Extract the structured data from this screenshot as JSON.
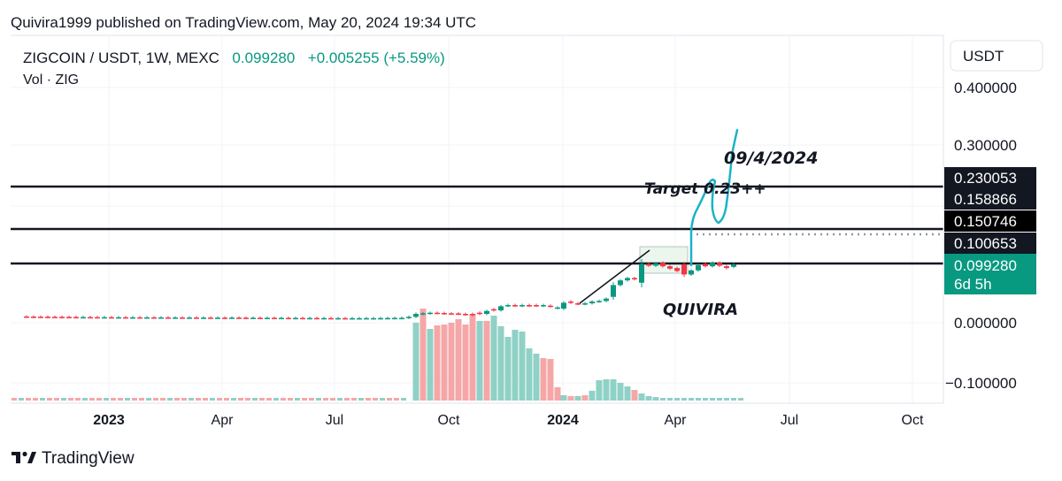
{
  "header": {
    "published": "Quivira1999 published on TradingView.com, May 20, 2024 19:34 UTC",
    "symbol": "ZIGCOIN / USDT, 1W, MEXC",
    "last_price": "0.099280",
    "change": "+0.005255 (+5.59%)",
    "volume_label": "Vol · ZIG"
  },
  "currency_button": "USDT",
  "price_axis": {
    "ticks": [
      "0.400000",
      "0.300000",
      "0.000000",
      "−0.100000"
    ],
    "tick_values": [
      0.4,
      0.3,
      0.0,
      -0.1
    ]
  },
  "price_tags": [
    {
      "text": "0.230053",
      "value": 0.230053,
      "color": "#131722"
    },
    {
      "text": "0.158866",
      "value": 0.158866,
      "color": "#131722"
    },
    {
      "text": "0.150746",
      "value": 0.150746,
      "color": "#000000"
    },
    {
      "text": "0.100653",
      "value": 0.100653,
      "color": "#131722"
    }
  ],
  "current_price_tag": {
    "price": "0.099280",
    "countdown": "6d 5h",
    "color": "#089981"
  },
  "time_axis": [
    {
      "label": "2023",
      "major": true
    },
    {
      "label": "Apr",
      "major": false
    },
    {
      "label": "Jul",
      "major": false
    },
    {
      "label": "Oct",
      "major": false
    },
    {
      "label": "2024",
      "major": true
    },
    {
      "label": "Apr",
      "major": false
    },
    {
      "label": "Jul",
      "major": false
    },
    {
      "label": "Oct",
      "major": false
    }
  ],
  "annotations": {
    "date": "09/4/2024",
    "target": "Target 0.23++",
    "author": "QUIVIRA"
  },
  "horizontal_lines": [
    0.230053,
    0.150746,
    0.09928
  ],
  "dotted_line": 0.158866,
  "brand": "TradingView",
  "colors": {
    "up": "#089981",
    "down": "#f23645",
    "vol_up": "#8fd1c6",
    "vol_down": "#f5a7a7",
    "cyan": "#1ab3c6"
  },
  "chart_data": {
    "type": "candlestick",
    "title": "ZIGCOIN / USDT, 1W, MEXC",
    "ylim": [
      -0.12,
      0.43
    ],
    "candles": [
      {
        "x": 30,
        "o": 0.0106,
        "c": 0.0104
      },
      {
        "x": 38,
        "o": 0.0104,
        "c": 0.0102
      },
      {
        "x": 46,
        "o": 0.0102,
        "c": 0.0101
      },
      {
        "x": 54,
        "o": 0.0101,
        "c": 0.01
      },
      {
        "x": 62,
        "o": 0.01,
        "c": 0.0099
      },
      {
        "x": 70,
        "o": 0.0099,
        "c": 0.0098
      },
      {
        "x": 78,
        "o": 0.0098,
        "c": 0.0097
      },
      {
        "x": 86,
        "o": 0.0097,
        "c": 0.0096
      },
      {
        "x": 94,
        "o": 0.0096,
        "c": 0.0096
      },
      {
        "x": 102,
        "o": 0.0096,
        "c": 0.0095
      },
      {
        "x": 110,
        "o": 0.0095,
        "c": 0.0094
      },
      {
        "x": 118,
        "o": 0.0094,
        "c": 0.0094
      },
      {
        "x": 126,
        "o": 0.0094,
        "c": 0.0093
      },
      {
        "x": 134,
        "o": 0.0093,
        "c": 0.0093
      },
      {
        "x": 142,
        "o": 0.0093,
        "c": 0.0092
      },
      {
        "x": 150,
        "o": 0.0092,
        "c": 0.0092
      },
      {
        "x": 158,
        "o": 0.0092,
        "c": 0.0091
      },
      {
        "x": 166,
        "o": 0.0091,
        "c": 0.0091
      },
      {
        "x": 174,
        "o": 0.0091,
        "c": 0.009
      },
      {
        "x": 182,
        "o": 0.009,
        "c": 0.009
      },
      {
        "x": 190,
        "o": 0.009,
        "c": 0.0089
      },
      {
        "x": 198,
        "o": 0.0089,
        "c": 0.0089
      },
      {
        "x": 206,
        "o": 0.0089,
        "c": 0.0088
      },
      {
        "x": 214,
        "o": 0.0088,
        "c": 0.0088
      },
      {
        "x": 222,
        "o": 0.0088,
        "c": 0.0087
      },
      {
        "x": 230,
        "o": 0.0087,
        "c": 0.0087
      },
      {
        "x": 238,
        "o": 0.0087,
        "c": 0.0086
      },
      {
        "x": 246,
        "o": 0.0086,
        "c": 0.0086
      },
      {
        "x": 254,
        "o": 0.0086,
        "c": 0.0085
      },
      {
        "x": 262,
        "o": 0.0085,
        "c": 0.0087
      },
      {
        "x": 270,
        "o": 0.0087,
        "c": 0.0085
      },
      {
        "x": 278,
        "o": 0.0085,
        "c": 0.0084
      },
      {
        "x": 286,
        "o": 0.0084,
        "c": 0.0084
      },
      {
        "x": 294,
        "o": 0.0084,
        "c": 0.0083
      },
      {
        "x": 302,
        "o": 0.0083,
        "c": 0.0083
      },
      {
        "x": 310,
        "o": 0.0083,
        "c": 0.0082
      },
      {
        "x": 318,
        "o": 0.0082,
        "c": 0.0082
      },
      {
        "x": 326,
        "o": 0.0082,
        "c": 0.0081
      },
      {
        "x": 334,
        "o": 0.0081,
        "c": 0.0081
      },
      {
        "x": 342,
        "o": 0.0081,
        "c": 0.008
      },
      {
        "x": 350,
        "o": 0.008,
        "c": 0.008
      },
      {
        "x": 358,
        "o": 0.008,
        "c": 0.0079
      },
      {
        "x": 366,
        "o": 0.0079,
        "c": 0.0079
      },
      {
        "x": 374,
        "o": 0.0079,
        "c": 0.0078
      },
      {
        "x": 382,
        "o": 0.0078,
        "c": 0.0078
      },
      {
        "x": 390,
        "o": 0.0078,
        "c": 0.0077
      },
      {
        "x": 398,
        "o": 0.0077,
        "c": 0.0077
      },
      {
        "x": 406,
        "o": 0.0077,
        "c": 0.0077
      },
      {
        "x": 414,
        "o": 0.0077,
        "c": 0.0078
      },
      {
        "x": 422,
        "o": 0.0078,
        "c": 0.0078
      },
      {
        "x": 430,
        "o": 0.0078,
        "c": 0.0079
      },
      {
        "x": 438,
        "o": 0.0079,
        "c": 0.008
      },
      {
        "x": 446,
        "o": 0.008,
        "c": 0.0081
      },
      {
        "x": 454,
        "o": 0.0081,
        "c": 0.0082
      },
      {
        "x": 462,
        "o": 0.0082,
        "c": 0.01
      },
      {
        "x": 470,
        "o": 0.01,
        "c": 0.015
      },
      {
        "x": 478,
        "o": 0.015,
        "c": 0.016
      },
      {
        "x": 486,
        "o": 0.016,
        "c": 0.017
      },
      {
        "x": 494,
        "o": 0.017,
        "c": 0.0165
      },
      {
        "x": 502,
        "o": 0.0165,
        "c": 0.016
      },
      {
        "x": 510,
        "o": 0.016,
        "c": 0.0158
      },
      {
        "x": 518,
        "o": 0.0158,
        "c": 0.015
      },
      {
        "x": 526,
        "o": 0.015,
        "c": 0.014
      },
      {
        "x": 534,
        "o": 0.015,
        "c": 0.013
      },
      {
        "x": 542,
        "o": 0.017,
        "c": 0.015
      },
      {
        "x": 550,
        "o": 0.015,
        "c": 0.02
      },
      {
        "x": 558,
        "o": 0.023,
        "c": 0.021
      },
      {
        "x": 566,
        "o": 0.021,
        "c": 0.028
      },
      {
        "x": 574,
        "o": 0.029,
        "c": 0.03
      },
      {
        "x": 582,
        "o": 0.03,
        "c": 0.029
      },
      {
        "x": 590,
        "o": 0.029,
        "c": 0.03
      },
      {
        "x": 598,
        "o": 0.03,
        "c": 0.029
      },
      {
        "x": 606,
        "o": 0.03,
        "c": 0.029
      },
      {
        "x": 614,
        "o": 0.029,
        "c": 0.03
      },
      {
        "x": 622,
        "o": 0.029,
        "c": 0.028
      },
      {
        "x": 630,
        "o": 0.025,
        "c": 0.026
      },
      {
        "x": 637,
        "o": 0.024,
        "c": 0.034
      },
      {
        "x": 645,
        "o": 0.036,
        "c": 0.034
      },
      {
        "x": 653,
        "o": 0.033,
        "c": 0.032
      },
      {
        "x": 661,
        "o": 0.032,
        "c": 0.033
      },
      {
        "x": 669,
        "o": 0.033,
        "c": 0.036
      },
      {
        "x": 677,
        "o": 0.036,
        "c": 0.037
      },
      {
        "x": 685,
        "o": 0.037,
        "c": 0.041
      },
      {
        "x": 693,
        "o": 0.044,
        "c": 0.064
      },
      {
        "x": 701,
        "o": 0.064,
        "c": 0.072
      },
      {
        "x": 709,
        "o": 0.072,
        "c": 0.076
      },
      {
        "x": 717,
        "o": 0.076,
        "c": 0.074
      },
      {
        "x": 725,
        "o": 0.068,
        "c": 0.1
      },
      {
        "x": 733,
        "o": 0.1,
        "c": 0.097
      },
      {
        "x": 741,
        "o": 0.097,
        "c": 0.101
      },
      {
        "x": 749,
        "o": 0.102,
        "c": 0.096
      },
      {
        "x": 757,
        "o": 0.096,
        "c": 0.092
      },
      {
        "x": 765,
        "o": 0.093,
        "c": 0.088
      },
      {
        "x": 773,
        "o": 0.099,
        "c": 0.082
      },
      {
        "x": 781,
        "o": 0.082,
        "c": 0.089
      },
      {
        "x": 789,
        "o": 0.089,
        "c": 0.098
      },
      {
        "x": 797,
        "o": 0.1,
        "c": 0.096
      },
      {
        "x": 805,
        "o": 0.096,
        "c": 0.102
      },
      {
        "x": 813,
        "o": 0.102,
        "c": 0.097
      },
      {
        "x": 821,
        "o": 0.096,
        "c": 0.093
      },
      {
        "x": 829,
        "o": 0.095,
        "c": 0.0992
      }
    ],
    "volume": [
      {
        "x": 470,
        "h": 88,
        "up": true
      },
      {
        "x": 478,
        "h": 104,
        "up": false
      },
      {
        "x": 486,
        "h": 81,
        "up": true
      },
      {
        "x": 494,
        "h": 85,
        "up": false
      },
      {
        "x": 502,
        "h": 86,
        "up": false
      },
      {
        "x": 510,
        "h": 88,
        "up": false
      },
      {
        "x": 518,
        "h": 92,
        "up": false
      },
      {
        "x": 526,
        "h": 86,
        "up": false
      },
      {
        "x": 534,
        "h": 98,
        "up": false
      },
      {
        "x": 542,
        "h": 90,
        "up": true
      },
      {
        "x": 550,
        "h": 90,
        "up": false
      },
      {
        "x": 558,
        "h": 96,
        "up": true
      },
      {
        "x": 566,
        "h": 84,
        "up": true
      },
      {
        "x": 574,
        "h": 72,
        "up": true
      },
      {
        "x": 582,
        "h": 80,
        "up": true
      },
      {
        "x": 590,
        "h": 78,
        "up": true
      },
      {
        "x": 598,
        "h": 59,
        "up": true
      },
      {
        "x": 606,
        "h": 53,
        "up": true
      },
      {
        "x": 614,
        "h": 48,
        "up": false
      },
      {
        "x": 622,
        "h": 47,
        "up": false
      },
      {
        "x": 630,
        "h": 15,
        "up": false
      },
      {
        "x": 637,
        "h": 6,
        "up": true
      },
      {
        "x": 645,
        "h": 5,
        "up": false
      },
      {
        "x": 653,
        "h": 5,
        "up": true
      },
      {
        "x": 661,
        "h": 6,
        "up": false
      },
      {
        "x": 669,
        "h": 11,
        "up": true
      },
      {
        "x": 677,
        "h": 23,
        "up": true
      },
      {
        "x": 685,
        "h": 24,
        "up": true
      },
      {
        "x": 693,
        "h": 24,
        "up": true
      },
      {
        "x": 701,
        "h": 20,
        "up": true
      },
      {
        "x": 709,
        "h": 16,
        "up": true
      },
      {
        "x": 717,
        "h": 12,
        "up": false
      },
      {
        "x": 725,
        "h": 8,
        "up": true
      },
      {
        "x": 733,
        "h": 5,
        "up": true
      },
      {
        "x": 741,
        "h": 4,
        "up": true
      }
    ]
  }
}
